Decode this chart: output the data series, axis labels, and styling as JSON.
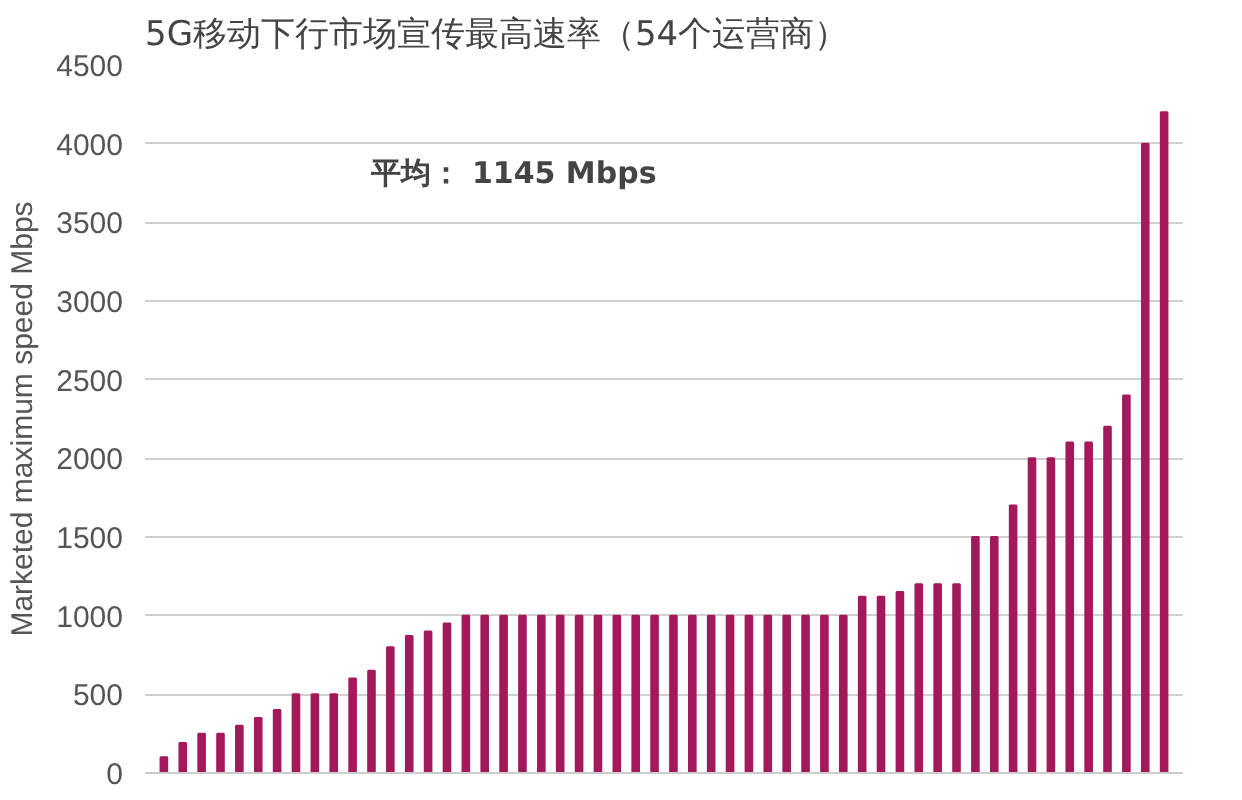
{
  "chart_data": {
    "type": "bar",
    "title": "5G移动下行市场宣传最高速率（54个运营商）",
    "ylabel": "Marketed maximum speed Mbps",
    "categories": [
      null,
      null,
      null,
      null,
      null,
      null,
      null,
      null,
      null,
      null,
      null,
      null,
      null,
      null,
      null,
      null,
      null,
      null,
      null,
      null,
      null,
      null,
      null,
      null,
      null,
      null,
      null,
      null,
      null,
      null,
      null,
      null,
      null,
      null,
      null,
      null,
      null,
      null,
      null,
      null,
      null,
      null,
      null,
      null,
      null,
      null,
      null,
      null,
      null,
      null,
      null,
      null,
      null,
      null
    ],
    "values": [
      100,
      190,
      250,
      250,
      300,
      350,
      400,
      500,
      500,
      500,
      600,
      650,
      800,
      870,
      900,
      950,
      1000,
      1000,
      1000,
      1000,
      1000,
      1000,
      1000,
      1000,
      1000,
      1000,
      1000,
      1000,
      1000,
      1000,
      1000,
      1000,
      1000,
      1000,
      1000,
      1000,
      1000,
      1120,
      1120,
      1150,
      1200,
      1200,
      1200,
      1500,
      1500,
      1700,
      2000,
      2000,
      2100,
      2100,
      2200,
      2400,
      4000,
      4200
    ],
    "color": "#a3195b",
    "ylim": [
      0,
      4500
    ],
    "yticks": [
      0,
      500,
      1000,
      1500,
      2000,
      2500,
      3000,
      3500,
      4000,
      4500
    ],
    "grid": "y",
    "annotations": [
      "平均： 1145 Mbps"
    ]
  }
}
